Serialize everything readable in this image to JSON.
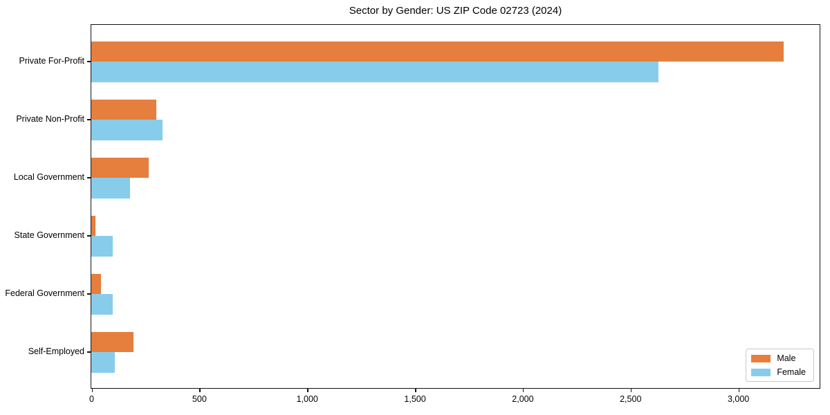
{
  "chart_data": {
    "type": "bar",
    "orientation": "horizontal",
    "title": "Sector by Gender: US ZIP Code 02723 (2024)",
    "categories": [
      "Private For-Profit",
      "Private Non-Profit",
      "Local Government",
      "State Government",
      "Federal Government",
      "Self-Employed"
    ],
    "series": [
      {
        "name": "Male",
        "color": "#e67e3d",
        "values": [
          3210,
          300,
          265,
          20,
          45,
          195
        ]
      },
      {
        "name": "Female",
        "color": "#87cdeb",
        "values": [
          2630,
          330,
          180,
          100,
          100,
          110
        ]
      }
    ],
    "xlabel": "",
    "ylabel": "",
    "xlim": [
      0,
      3375
    ],
    "xticks": [
      0,
      500,
      1000,
      1500,
      2000,
      2500,
      3000
    ],
    "grid": false,
    "legend_position": "lower right",
    "colors": {
      "spine": "#111111",
      "background": "#ffffff"
    }
  }
}
